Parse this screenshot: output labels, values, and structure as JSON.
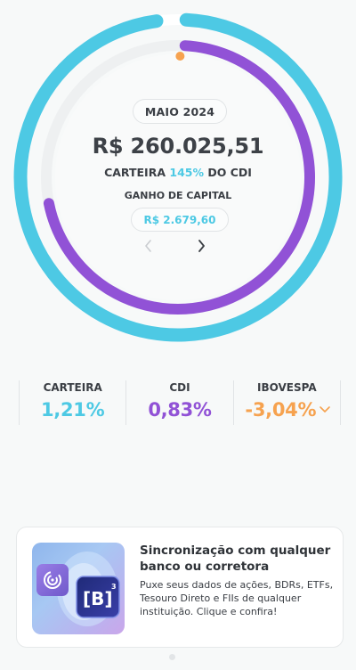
{
  "summary": {
    "month": "MAIO 2024",
    "amount": "R$ 260.025,51",
    "cdi_prefix": "CARTEIRA",
    "cdi_pct": "145%",
    "cdi_suffix": "DO CDI",
    "gain_label": "GANHO DE CAPITAL",
    "gain_value": "R$ 2.679,60"
  },
  "ring": {
    "outer_color": "#4dc9e4",
    "inner_color": "#9152d6",
    "marker_color": "#f6a24f",
    "track_color": "#eef0f1",
    "portfolio_progress": 0.97,
    "cdi_progress": 0.71
  },
  "stats": [
    {
      "label": "CARTEIRA",
      "value": "1,21%",
      "color": "#4dc9e4"
    },
    {
      "label": "CDI",
      "value": "0,83%",
      "color": "#9152d6"
    },
    {
      "label": "IBOVESPA",
      "value": "-3,04%",
      "color": "#f6a24f"
    }
  ],
  "promo": {
    "title": "Sincronização com qualquer banco ou corretora",
    "body": "Puxe seus dados de ações, BDRs, ETFs, Tesouro Direto e FIIs de qualquer instituição. Clique e confira!",
    "logo_text": "[B]",
    "logo_sup": "3"
  },
  "icons": {
    "prev": "chevron-left-icon",
    "next": "chevron-right-icon",
    "expand": "chevron-down-icon",
    "sync": "sync-radar-icon"
  }
}
